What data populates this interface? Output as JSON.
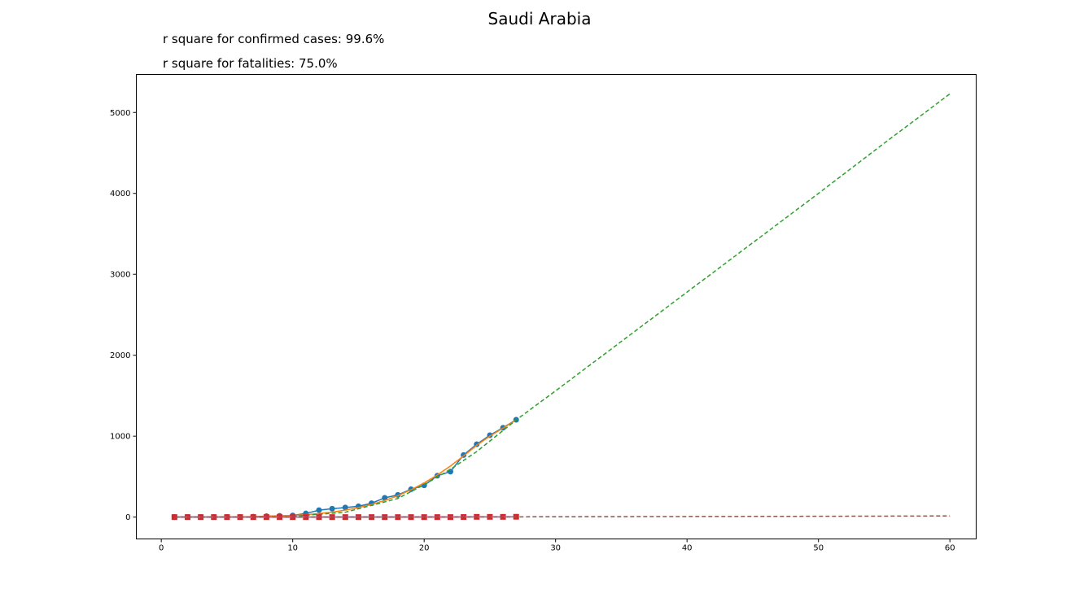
{
  "chart_data": {
    "type": "line",
    "title": "Saudi Arabia",
    "annotations": [
      "r square for confirmed cases: 99.6%",
      "r square for fatalities: 75.0%"
    ],
    "xlabel": "",
    "ylabel": "",
    "xlim": [
      -1.9,
      62.0
    ],
    "ylim": [
      -270,
      5470
    ],
    "x_ticks": [
      0,
      10,
      20,
      30,
      40,
      50,
      60
    ],
    "y_ticks": [
      0,
      1000,
      2000,
      3000,
      4000,
      5000
    ],
    "grid": false,
    "legend": "none",
    "series": [
      {
        "kind": "observed confirmed",
        "style": "line+markers",
        "marker": "circle",
        "color": "#1f77b4",
        "x": [
          1,
          2,
          3,
          4,
          5,
          6,
          7,
          8,
          9,
          10,
          11,
          12,
          13,
          14,
          15,
          16,
          17,
          18,
          19,
          20,
          21,
          22,
          23,
          24,
          25,
          26,
          27
        ],
        "y": [
          1,
          1,
          1,
          1,
          1,
          1,
          5,
          11,
          15,
          20,
          45,
          86,
          103,
          118,
          133,
          171,
          238,
          274,
          344,
          392,
          511,
          562,
          767,
          900,
          1012,
          1104,
          1203
        ]
      },
      {
        "kind": "fitted confirmed",
        "style": "line",
        "color": "#ff7f0e",
        "x": [
          1,
          2,
          3,
          4,
          5,
          6,
          7,
          8,
          9,
          10,
          11,
          12,
          13,
          14,
          15,
          16,
          17,
          18,
          19,
          20,
          21,
          22,
          23,
          24,
          25,
          26,
          27
        ],
        "y": [
          0,
          0,
          0,
          1,
          2,
          3,
          5,
          8,
          13,
          20,
          30,
          44,
          62,
          86,
          117,
          156,
          205,
          265,
          337,
          422,
          520,
          631,
          756,
          887,
          1000,
          1100,
          1200
        ]
      },
      {
        "kind": "projected confirmed",
        "style": "dashed",
        "color": "#2ca02c",
        "x": [
          10,
          14,
          18,
          20,
          22,
          24,
          27,
          30,
          35,
          40,
          45,
          50,
          55,
          60
        ],
        "y": [
          10,
          60,
          230,
          400,
          590,
          810,
          1200,
          1560,
          2170,
          2780,
          3390,
          4000,
          4620,
          5230
        ]
      },
      {
        "kind": "observed fatalities",
        "style": "line+markers",
        "marker": "square",
        "color": "#d62728",
        "x": [
          1,
          2,
          3,
          4,
          5,
          6,
          7,
          8,
          9,
          10,
          11,
          12,
          13,
          14,
          15,
          16,
          17,
          18,
          19,
          20,
          21,
          22,
          23,
          24,
          25,
          26,
          27
        ],
        "y": [
          0,
          0,
          0,
          0,
          0,
          0,
          0,
          0,
          0,
          0,
          0,
          0,
          0,
          0,
          0,
          0,
          0,
          0,
          0,
          0,
          0,
          0,
          1,
          3,
          3,
          3,
          4
        ]
      },
      {
        "kind": "fitted fatalities",
        "style": "line",
        "color": "#9467bd",
        "x": [
          1,
          27
        ],
        "y": [
          0,
          3
        ]
      },
      {
        "kind": "projected fatalities",
        "style": "dashed",
        "color": "#8c564b",
        "x": [
          1,
          10,
          20,
          27,
          30,
          40,
          50,
          60
        ],
        "y": [
          0,
          0,
          1,
          3,
          4,
          7,
          10,
          14
        ]
      }
    ]
  }
}
